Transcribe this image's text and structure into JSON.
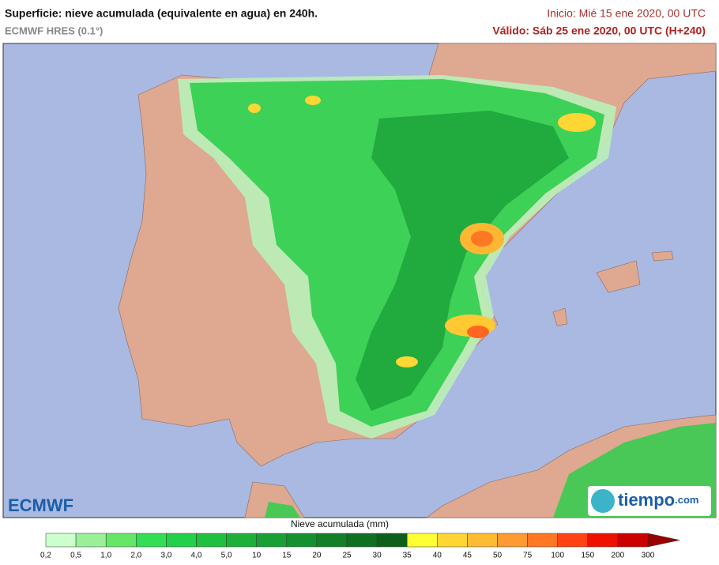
{
  "header": {
    "title": "Superficie: nieve acumulada (equivalente en agua) en 240h.",
    "subtitle": "ECMWF HRES (0.1°)",
    "start": "Inicio: Mié 15 ene 2020, 00 UTC",
    "valid": "Válido: Sáb 25 ene 2020, 00 UTC (H+240)"
  },
  "logos": {
    "left": "ECMWF",
    "right_name": "tiempo",
    "right_domain": ".com"
  },
  "legend": {
    "title": "Nieve acumulada (mm)",
    "ticks": [
      "0,2",
      "0,5",
      "1,0",
      "2,0",
      "3,0",
      "4,0",
      "5,0",
      "10",
      "15",
      "20",
      "25",
      "30",
      "35",
      "40",
      "45",
      "50",
      "75",
      "100",
      "150",
      "200",
      "300"
    ],
    "colors": [
      "#ccffcc",
      "#99f099",
      "#66e666",
      "#33dd55",
      "#22d04a",
      "#1fc040",
      "#1cb03a",
      "#18a034",
      "#15902e",
      "#138028",
      "#107022",
      "#0d601c",
      "#ffff33",
      "#ffd633",
      "#ffbb33",
      "#ff9933",
      "#ff7722",
      "#ff4411",
      "#ee1100",
      "#cc0000",
      "#990000"
    ]
  }
}
